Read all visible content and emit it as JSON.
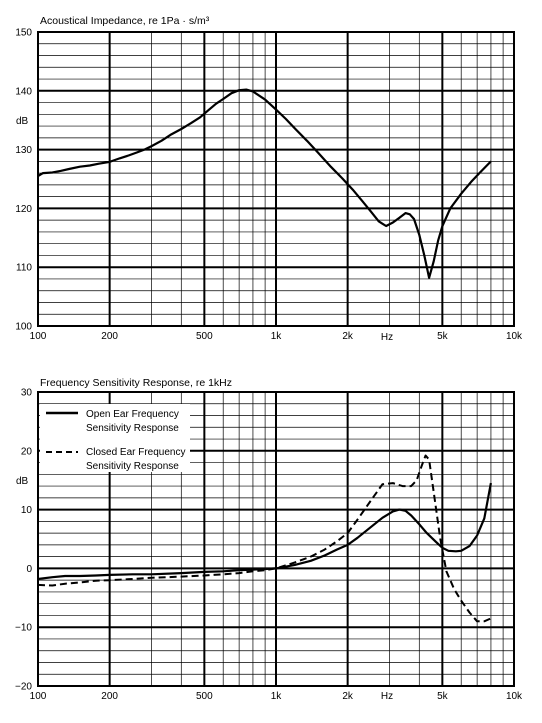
{
  "chart_data": [
    {
      "type": "line",
      "title": "Acoustical Impedance, re 1Pa · s/m³",
      "ylabel": "dB",
      "xlabel": "Hz",
      "xscale": "log",
      "xlim": [
        100,
        10000
      ],
      "ylim": [
        100,
        150
      ],
      "grid": true,
      "x_ticks": [
        {
          "value": 100,
          "label": "100"
        },
        {
          "value": 200,
          "label": "200"
        },
        {
          "value": 500,
          "label": "500"
        },
        {
          "value": 1000,
          "label": "1k"
        },
        {
          "value": 2000,
          "label": "2k"
        },
        {
          "value": 5000,
          "label": "5k"
        },
        {
          "value": 10000,
          "label": "10k"
        }
      ],
      "y_ticks": [
        {
          "value": 100,
          "label": "100"
        },
        {
          "value": 110,
          "label": "110"
        },
        {
          "value": 120,
          "label": "120"
        },
        {
          "value": 130,
          "label": "130"
        },
        {
          "value": 140,
          "label": "140"
        },
        {
          "value": 150,
          "label": "150"
        }
      ],
      "series": [
        {
          "style": "solid",
          "x": [
            100,
            105,
            115,
            125,
            135,
            150,
            165,
            180,
            200,
            220,
            240,
            260,
            280,
            300,
            330,
            360,
            400,
            440,
            480,
            520,
            560,
            600,
            650,
            700,
            750,
            800,
            900,
            1000,
            1100,
            1200,
            1350,
            1500,
            1700,
            1900,
            2100,
            2300,
            2500,
            2700,
            2900,
            3100,
            3300,
            3500,
            3650,
            3800,
            4000,
            4200,
            4400,
            4600,
            4800,
            5000,
            5400,
            6000,
            6600,
            7200,
            8000
          ],
          "values": [
            125.5,
            126,
            126.1,
            126.4,
            126.7,
            127.1,
            127.3,
            127.6,
            127.9,
            128.5,
            129,
            129.5,
            130,
            130.6,
            131.5,
            132.5,
            133.5,
            134.5,
            135.5,
            136.7,
            137.8,
            138.6,
            139.6,
            140.1,
            140.2,
            139.9,
            138.5,
            136.8,
            135.2,
            133.6,
            131.5,
            129.5,
            127.1,
            125.1,
            123.2,
            121.3,
            119.5,
            117.8,
            117,
            117.6,
            118.4,
            119.2,
            119,
            118.2,
            115.5,
            112,
            108.2,
            111,
            114.5,
            117,
            120,
            122.5,
            124.5,
            126.1,
            128
          ]
        }
      ]
    },
    {
      "type": "line",
      "title": "Frequency Sensitivity Response, re 1kHz",
      "ylabel": "dB",
      "xlabel": "Hz",
      "xscale": "log",
      "xlim": [
        100,
        10000
      ],
      "ylim": [
        -20,
        30
      ],
      "grid": true,
      "legend_position": "top-left",
      "x_ticks": [
        {
          "value": 100,
          "label": "100"
        },
        {
          "value": 200,
          "label": "200"
        },
        {
          "value": 500,
          "label": "500"
        },
        {
          "value": 1000,
          "label": "1k"
        },
        {
          "value": 2000,
          "label": "2k"
        },
        {
          "value": 5000,
          "label": "5k"
        },
        {
          "value": 10000,
          "label": "10k"
        }
      ],
      "y_ticks": [
        {
          "value": -20,
          "label": "−20"
        },
        {
          "value": -10,
          "label": "−10"
        },
        {
          "value": 0,
          "label": "0"
        },
        {
          "value": 10,
          "label": "10"
        },
        {
          "value": 20,
          "label": "20"
        },
        {
          "value": 30,
          "label": "30"
        }
      ],
      "series": [
        {
          "name": "Open Ear Frequency Sensitivity Response",
          "style": "solid",
          "x": [
            100,
            115,
            130,
            150,
            175,
            200,
            250,
            300,
            400,
            500,
            600,
            700,
            800,
            900,
            1000,
            1200,
            1400,
            1600,
            1800,
            2000,
            2200,
            2500,
            2800,
            3100,
            3300,
            3500,
            3700,
            4000,
            4300,
            4700,
            5000,
            5300,
            5700,
            6000,
            6500,
            7000,
            7500,
            8000
          ],
          "values": [
            -1.8,
            -1.5,
            -1.3,
            -1.3,
            -1.2,
            -1.1,
            -1,
            -1,
            -0.8,
            -0.6,
            -0.5,
            -0.3,
            -0.2,
            -0.1,
            0,
            0.6,
            1.3,
            2.2,
            3.2,
            4,
            5.2,
            7,
            8.6,
            9.7,
            10,
            9.8,
            9,
            7.5,
            6,
            4.5,
            3.5,
            3,
            2.9,
            3,
            3.8,
            5.6,
            8.5,
            14.5
          ]
        },
        {
          "name": "Closed Ear Frequency Sensitivity Response",
          "style": "dashed",
          "x": [
            100,
            115,
            130,
            150,
            175,
            200,
            250,
            300,
            400,
            500,
            600,
            700,
            800,
            900,
            1000,
            1200,
            1400,
            1600,
            1800,
            2000,
            2200,
            2500,
            2800,
            3100,
            3400,
            3700,
            3900,
            4100,
            4250,
            4400,
            4600,
            4900,
            5200,
            5600,
            6000,
            6500,
            7000,
            7500,
            8000
          ],
          "values": [
            -2.8,
            -2.9,
            -2.6,
            -2.4,
            -2.1,
            -2,
            -1.8,
            -1.6,
            -1.4,
            -1.2,
            -1,
            -0.8,
            -0.5,
            -0.3,
            0,
            1,
            2,
            3.2,
            4.6,
            6,
            8.3,
            11.5,
            14.3,
            14.5,
            14,
            14,
            15,
            17.5,
            19.2,
            18.5,
            13,
            5,
            -0.5,
            -3.5,
            -5.5,
            -7.5,
            -9,
            -9,
            -8.5
          ]
        }
      ]
    }
  ]
}
